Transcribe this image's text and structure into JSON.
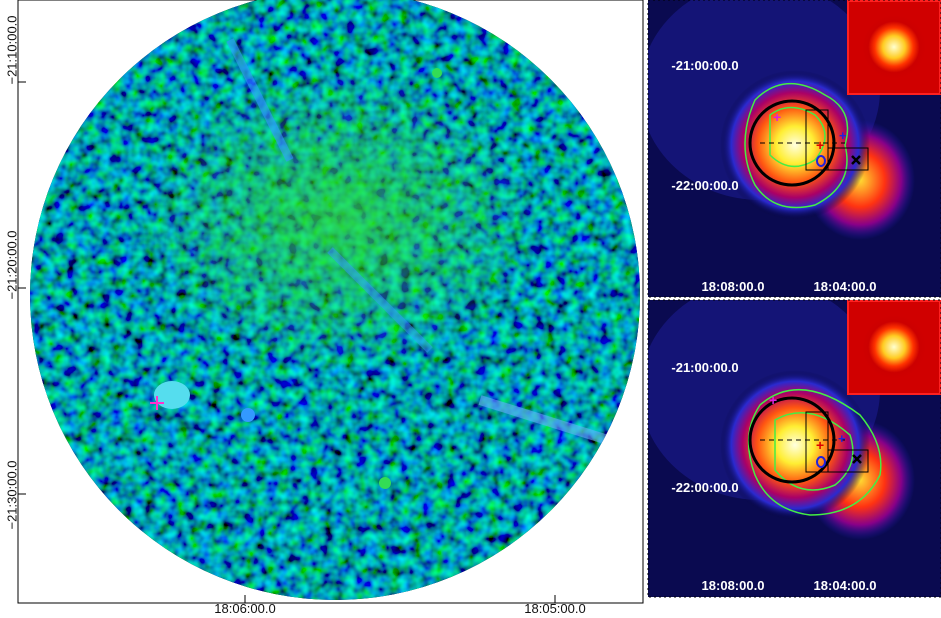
{
  "left_panel": {
    "y_labels": [
      "−21:10:00.0",
      "−21:20:00.0",
      "−21:30:00.0"
    ],
    "x_labels": [
      "18:06:00.0",
      "18:05:00.0"
    ]
  },
  "right_panels": [
    {
      "y_labels": [
        "-21:00:00.0",
        "-22:00:00.0"
      ],
      "x_labels": [
        "18:08:00.0",
        "18:04:00.0"
      ]
    },
    {
      "y_labels": [
        "-21:00:00.0",
        "-22:00:00.0"
      ],
      "x_labels": [
        "18:08:00.0",
        "18:04:00.0"
      ]
    }
  ]
}
